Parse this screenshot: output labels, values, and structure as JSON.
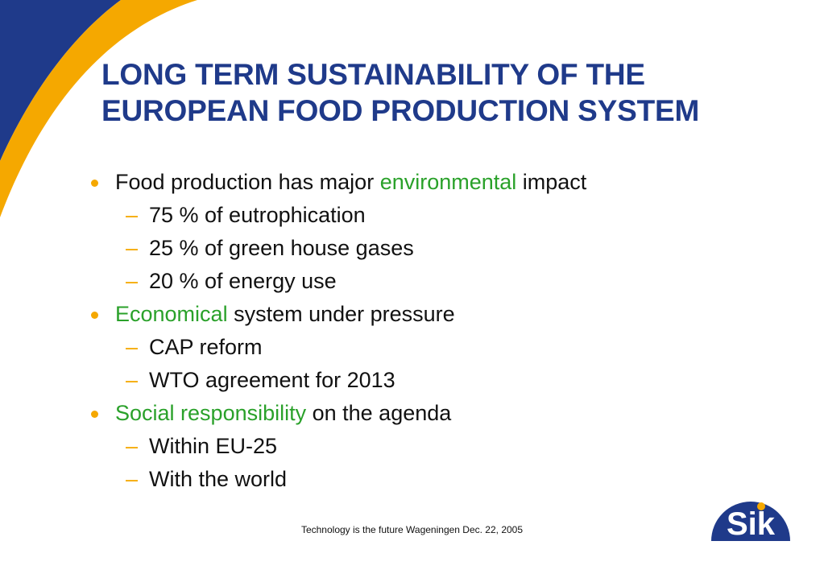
{
  "slide": {
    "title_line1": "LONG TERM SUSTAINABILITY OF THE",
    "title_line2": "EUROPEAN FOOD PRODUCTION SYSTEM"
  },
  "bullets": [
    {
      "pre": "Food production has major ",
      "highlight": "environmental",
      "post": " impact",
      "subs": [
        "75 % of eutrophication",
        "25 % of green house gases",
        "20 % of energy use"
      ]
    },
    {
      "pre": "",
      "highlight": "Economical",
      "post": " system under pressure",
      "subs": [
        "CAP reform",
        "WTO agreement for 2013"
      ]
    },
    {
      "pre": "",
      "highlight": "Social responsibility",
      "post": " on the agenda",
      "subs": [
        "Within EU-25",
        "With the world"
      ]
    }
  ],
  "dash_char": "–",
  "footer": "Technology is the future Wageningen Dec. 22, 2005",
  "logo": {
    "text": "Sik"
  },
  "colors": {
    "title": "#1f3a8a",
    "accent": "#f5a800",
    "highlight": "#2aa12a",
    "navy": "#1f3a8a"
  }
}
